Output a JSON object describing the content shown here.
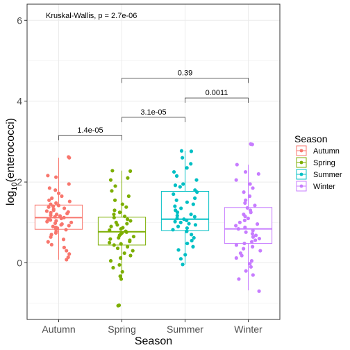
{
  "chart_data": {
    "type": "box",
    "title": "",
    "annotation": "Kruskal-Wallis, p = 2.7e-06",
    "xlabel": "Season",
    "ylabel_prefix": "log",
    "ylabel_sub": "10",
    "ylabel_suffix": "(enterococci)",
    "ylim": [
      -1.4,
      6.4
    ],
    "yticks": [
      0,
      2,
      4,
      6
    ],
    "ytick_labels": [
      "0",
      "2",
      "4",
      "6"
    ],
    "categories": [
      "Autumn",
      "Spring",
      "Summer",
      "Winter"
    ],
    "colors": [
      "#F8766D",
      "#7CAE00",
      "#00BFC4",
      "#C77CFF"
    ],
    "legend": {
      "title": "Season",
      "entries": [
        "Autumn",
        "Spring",
        "Summer",
        "Winter"
      ],
      "placement": "right"
    },
    "grid": true,
    "boxes": [
      {
        "name": "Autumn",
        "q1": 0.83,
        "median": 1.12,
        "q3": 1.43,
        "whisker_low": 0.08,
        "whisker_high": 2.6
      },
      {
        "name": "Spring",
        "q1": 0.44,
        "median": 0.77,
        "q3": 1.13,
        "whisker_low": -0.4,
        "whisker_high": 2.28
      },
      {
        "name": "Summer",
        "q1": 0.8,
        "median": 1.08,
        "q3": 1.77,
        "whisker_low": -0.04,
        "whisker_high": 2.77
      },
      {
        "name": "Winter",
        "q1": 0.48,
        "median": 0.84,
        "q3": 1.37,
        "whisker_low": -0.68,
        "whisker_high": 2.43
      }
    ],
    "points": [
      [
        2.62,
        2.6,
        2.16,
        2.12,
        1.95,
        1.85,
        1.8,
        1.72,
        1.65,
        1.6,
        1.55,
        1.52,
        1.48,
        1.45,
        1.42,
        1.4,
        1.38,
        1.35,
        1.33,
        1.3,
        1.28,
        1.26,
        1.24,
        1.22,
        1.2,
        1.18,
        1.16,
        1.14,
        1.12,
        1.1,
        1.08,
        1.06,
        1.04,
        1.02,
        1.0,
        0.98,
        0.96,
        0.94,
        0.92,
        0.9,
        0.88,
        0.86,
        0.84,
        0.82,
        0.78,
        0.74,
        0.7,
        0.64,
        0.58,
        0.52,
        0.45,
        0.38,
        0.3,
        0.22,
        0.14,
        0.08
      ],
      [
        2.28,
        2.27,
        2.1,
        2.05,
        1.9,
        1.78,
        1.65,
        1.55,
        1.45,
        1.38,
        1.3,
        1.25,
        1.2,
        1.15,
        1.12,
        1.08,
        1.04,
        1.0,
        0.97,
        0.94,
        0.9,
        0.87,
        0.84,
        0.81,
        0.78,
        0.76,
        0.74,
        0.71,
        0.68,
        0.65,
        0.62,
        0.59,
        0.56,
        0.53,
        0.5,
        0.47,
        0.44,
        0.4,
        0.36,
        0.3,
        0.24,
        0.18,
        0.12,
        0.05,
        -0.05,
        -0.12,
        -0.22,
        -0.33,
        -0.4,
        -1.05,
        -1.06
      ],
      [
        2.77,
        2.76,
        2.6,
        2.45,
        2.35,
        2.25,
        2.15,
        2.05,
        1.95,
        1.92,
        1.88,
        1.8,
        1.75,
        1.7,
        1.6,
        1.55,
        1.5,
        1.45,
        1.4,
        1.35,
        1.3,
        1.25,
        1.2,
        1.17,
        1.14,
        1.1,
        1.08,
        1.05,
        1.02,
        1.0,
        0.97,
        0.94,
        0.9,
        0.86,
        0.82,
        0.78,
        0.7,
        0.62,
        0.55,
        0.48,
        0.4,
        0.32,
        0.2,
        0.1,
        -0.04
      ],
      [
        2.94,
        2.93,
        2.43,
        2.25,
        2.2,
        2.05,
        1.95,
        1.85,
        1.75,
        1.65,
        1.55,
        1.48,
        1.42,
        1.36,
        1.3,
        1.25,
        1.2,
        1.15,
        1.1,
        1.05,
        1.0,
        0.96,
        0.92,
        0.88,
        0.84,
        0.8,
        0.76,
        0.72,
        0.68,
        0.64,
        0.6,
        0.56,
        0.52,
        0.48,
        0.44,
        0.4,
        0.35,
        0.3,
        0.24,
        0.18,
        0.12,
        0.05,
        -0.02,
        -0.1,
        -0.2,
        -0.3,
        -0.4,
        -0.7
      ]
    ],
    "comparisons": [
      {
        "from": "Autumn",
        "to": "Spring",
        "label": "1.4e-05",
        "y": 3.15
      },
      {
        "from": "Spring",
        "to": "Summer",
        "label": "3.1e-05",
        "y": 3.6
      },
      {
        "from": "Summer",
        "to": "Winter",
        "label": "0.0011",
        "y": 4.08
      },
      {
        "from": "Spring",
        "to": "Winter",
        "label": "0.39",
        "y": 4.57
      }
    ]
  }
}
